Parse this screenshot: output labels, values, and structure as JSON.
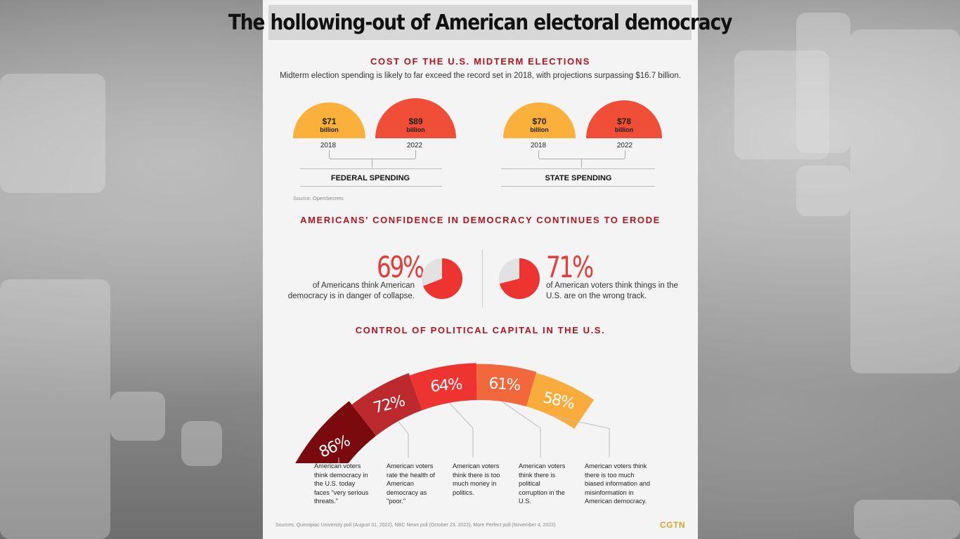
{
  "title": "The hollowing-out of American electoral democracy",
  "cost": {
    "heading": "COST OF THE U.S. MIDTERM ELECTIONS",
    "subtitle": "Midterm election spending is likely to far exceed the record set in 2018, with projections surpassing $16.7 billion.",
    "unit": "billion",
    "federal": {
      "label": "FEDERAL SPENDING",
      "items": [
        {
          "amount": "$71",
          "year": "2018",
          "value": 71
        },
        {
          "amount": "$89",
          "year": "2022",
          "value": 89
        }
      ]
    },
    "state": {
      "label": "STATE SPENDING",
      "items": [
        {
          "amount": "$70",
          "year": "2018",
          "value": 70
        },
        {
          "amount": "$78",
          "year": "2022",
          "value": 78
        }
      ]
    },
    "source": "Source: OpenSecrets"
  },
  "confidence": {
    "heading": "AMERICANS' CONFIDENCE IN DEMOCRACY CONTINUES TO ERODE",
    "left": {
      "pct": "69%",
      "value": 69,
      "text": "of Americans think American democracy is in danger of collapse."
    },
    "right": {
      "pct": "71%",
      "value": 71,
      "text": "of American voters think things in the U.S. are on the wrong track."
    }
  },
  "capital": {
    "heading": "CONTROL OF POLITICAL CAPITAL IN THE U.S.",
    "segments": [
      {
        "pct": "86%",
        "value": 86,
        "caption": "American voters think democracy in the U.S. today faces \"very serious threats.\""
      },
      {
        "pct": "72%",
        "value": 72,
        "caption": "American voters rate the health of American democracy as \"poor.\""
      },
      {
        "pct": "64%",
        "value": 64,
        "caption": "American voters think there is too much money in politics."
      },
      {
        "pct": "61%",
        "value": 61,
        "caption": "American voters think there is political corruption in the U.S."
      },
      {
        "pct": "58%",
        "value": 58,
        "caption": "American voters think there is too much biased information and misinformation in American democracy."
      }
    ]
  },
  "colors": {
    "accent": "#b0151e",
    "semi_2018": "#fbb03b",
    "semi_2022": "#f04e37",
    "pie_fill": "#ee3430",
    "pie_rest": "#e2e2e2",
    "arc": [
      "#7a0a0e",
      "#bd2a2e",
      "#ee3430",
      "#f2683c",
      "#f9ab3c"
    ]
  },
  "footer": {
    "sources": "Sources: Quinnipiac University poll (August 31, 2022), NBC News poll (October 23, 2022), More Perfect poll (November 4, 2022)",
    "logo": "CGTN"
  }
}
